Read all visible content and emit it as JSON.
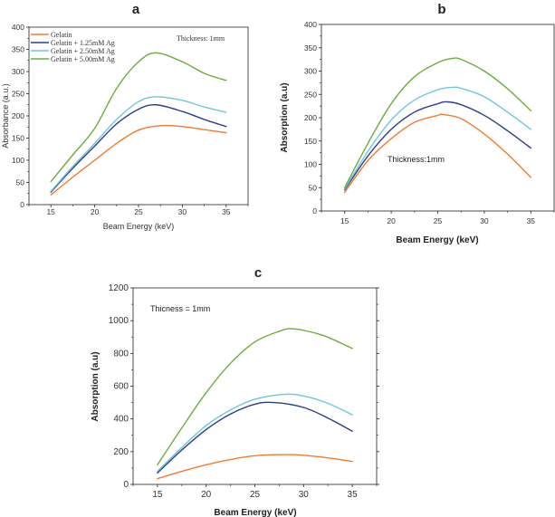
{
  "chart_data": [
    {
      "id": "a",
      "type": "line",
      "title": "a",
      "xlabel": "Beam Energy (keV)",
      "ylabel": "Absorbance (a.u.)",
      "xlim": [
        12.5,
        37.5
      ],
      "ylim": [
        0,
        400
      ],
      "xticks": [
        15,
        20,
        25,
        30,
        35
      ],
      "yticks": [
        0,
        50,
        100,
        150,
        200,
        250,
        300,
        350,
        400
      ],
      "annotation": "Thickness: 1mm",
      "legend_position": "top-left",
      "grid": false,
      "series": [
        {
          "name": "Gelatin",
          "color": "#f07c2e",
          "x": [
            15,
            17.5,
            20,
            22.5,
            25,
            27.5,
            30,
            32.5,
            35
          ],
          "y": [
            22,
            62,
            100,
            138,
            168,
            178,
            176,
            169,
            162
          ]
        },
        {
          "name": "Gelatin + 1.25mM Ag",
          "color": "#2b3d8a",
          "x": [
            15,
            17.5,
            20,
            22.5,
            25,
            27,
            30,
            32.5,
            35
          ],
          "y": [
            28,
            82,
            132,
            182,
            215,
            225,
            210,
            192,
            176
          ]
        },
        {
          "name": "Gelatin + 2.50mM Ag",
          "color": "#6cc6de",
          "x": [
            15,
            17.5,
            20,
            22.5,
            25,
            27,
            30,
            32.5,
            35
          ],
          "y": [
            30,
            86,
            138,
            192,
            232,
            243,
            235,
            220,
            208
          ]
        },
        {
          "name": "Gelatin + 5.00mM Ag",
          "color": "#6aae3a",
          "x": [
            15,
            17.5,
            20,
            22.5,
            25,
            27,
            30,
            32.5,
            35
          ],
          "y": [
            52,
            112,
            172,
            262,
            322,
            342,
            322,
            296,
            280
          ]
        }
      ]
    },
    {
      "id": "b",
      "type": "line",
      "title": "b",
      "xlabel": "Beam Energy (keV)",
      "ylabel": "Absorption (a.u)",
      "xlim": [
        12.5,
        37.5
      ],
      "ylim": [
        0,
        400
      ],
      "xticks": [
        15,
        20,
        25,
        30,
        35
      ],
      "yticks": [
        0,
        50,
        100,
        150,
        200,
        250,
        300,
        350,
        400
      ],
      "annotation": "Thickness:1mm",
      "grid": false,
      "series": [
        {
          "name": "Gelatin",
          "color": "#f07c2e",
          "x": [
            15,
            17.5,
            20,
            22.5,
            25,
            25.5,
            27.5,
            30,
            32.5,
            35
          ],
          "y": [
            40,
            108,
            155,
            190,
            205,
            207,
            198,
            165,
            122,
            72
          ]
        },
        {
          "name": "Gelatin + 1.25mM Ag",
          "color": "#2b3d8a",
          "x": [
            15,
            17.5,
            20,
            22.5,
            25,
            26,
            27.5,
            30,
            32.5,
            35
          ],
          "y": [
            45,
            118,
            175,
            212,
            230,
            234,
            228,
            205,
            172,
            135
          ]
        },
        {
          "name": "Gelatin + 2.50mM Ag",
          "color": "#6cc6de",
          "x": [
            15,
            17.5,
            20,
            22.5,
            25,
            26.5,
            27.5,
            30,
            32.5,
            35
          ],
          "y": [
            47,
            128,
            195,
            238,
            260,
            265,
            263,
            245,
            212,
            175
          ]
        },
        {
          "name": "Gelatin + 5.00mM Ag",
          "color": "#6aae3a",
          "x": [
            15,
            17.5,
            20,
            22.5,
            25,
            26.5,
            27.5,
            30,
            32.5,
            35
          ],
          "y": [
            50,
            145,
            230,
            288,
            318,
            327,
            325,
            300,
            262,
            215
          ]
        }
      ]
    },
    {
      "id": "c",
      "type": "line",
      "title": "c",
      "xlabel": "Beam Energy (keV)",
      "ylabel": "Absorption (a.u)",
      "xlim": [
        12.5,
        37.5
      ],
      "ylim": [
        0,
        1200
      ],
      "xticks": [
        15,
        20,
        25,
        30,
        35
      ],
      "yticks": [
        0,
        200,
        400,
        600,
        800,
        1000,
        1200
      ],
      "annotation": "Thicness = 1mm",
      "grid": false,
      "series": [
        {
          "name": "Gelatin",
          "color": "#f07c2e",
          "x": [
            15,
            17.5,
            20,
            22.5,
            25,
            28,
            30,
            32.5,
            35
          ],
          "y": [
            35,
            80,
            120,
            152,
            175,
            182,
            178,
            162,
            140
          ]
        },
        {
          "name": "Gelatin + 1.25mM Ag",
          "color": "#2b3d8a",
          "x": [
            15,
            17.5,
            20,
            22.5,
            25,
            27,
            30,
            32.5,
            35
          ],
          "y": [
            70,
            210,
            335,
            430,
            490,
            500,
            470,
            405,
            325
          ]
        },
        {
          "name": "Gelatin + 2.50mM Ag",
          "color": "#6cc6de",
          "x": [
            15,
            17.5,
            20,
            22.5,
            25,
            28,
            30,
            32.5,
            35
          ],
          "y": [
            80,
            225,
            360,
            455,
            520,
            550,
            540,
            495,
            425
          ]
        },
        {
          "name": "Gelatin + 5.00mM Ag",
          "color": "#6aae3a",
          "x": [
            15,
            17.5,
            20,
            22.5,
            25,
            27.5,
            29,
            32,
            35
          ],
          "y": [
            120,
            345,
            560,
            740,
            870,
            935,
            950,
            910,
            830
          ]
        }
      ]
    }
  ]
}
